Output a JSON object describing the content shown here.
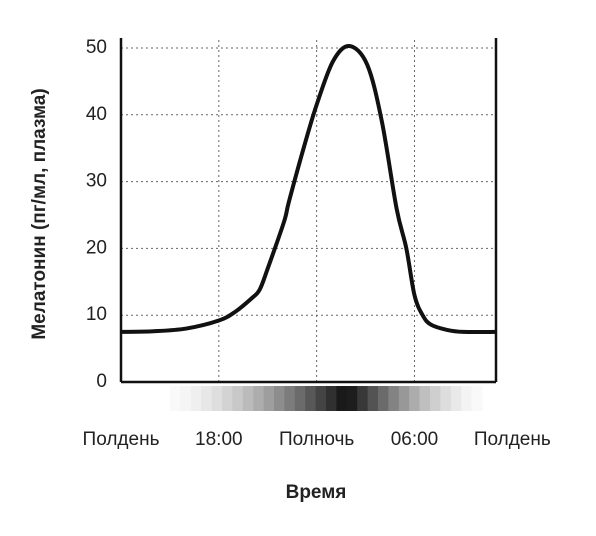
{
  "chart_data": {
    "type": "line",
    "xlabel": "Время",
    "ylabel": "Мелатонин (пг/мл, плазма)",
    "x": [
      12,
      14,
      16,
      18,
      19,
      20,
      20.5,
      21,
      22,
      22.3,
      23.2,
      24,
      25,
      26,
      27.1,
      28,
      28.9,
      29.5,
      30,
      30.5,
      31,
      32,
      33,
      35
    ],
    "series": [
      {
        "name": "Мелатонин",
        "color": "#111111",
        "values": [
          7.5,
          7.6,
          8,
          9.2,
          10.5,
          12.5,
          13.8,
          17,
          24,
          27,
          35,
          41.5,
          48,
          50.3,
          47.5,
          39,
          26,
          20,
          13,
          10,
          8.6,
          7.8,
          7.5,
          7.5
        ]
      }
    ],
    "xlim": [
      12,
      35
    ],
    "xticks": [
      {
        "value": 12,
        "label": "Полдень"
      },
      {
        "value": 18,
        "label": "18:00"
      },
      {
        "value": 24,
        "label": "Полночь"
      },
      {
        "value": 30,
        "label": "06:00"
      },
      {
        "value": 36,
        "label": "Полдень"
      }
    ],
    "ylim": [
      0,
      50
    ],
    "yticks": [
      0,
      10,
      20,
      30,
      40,
      50
    ],
    "grid": true
  }
}
